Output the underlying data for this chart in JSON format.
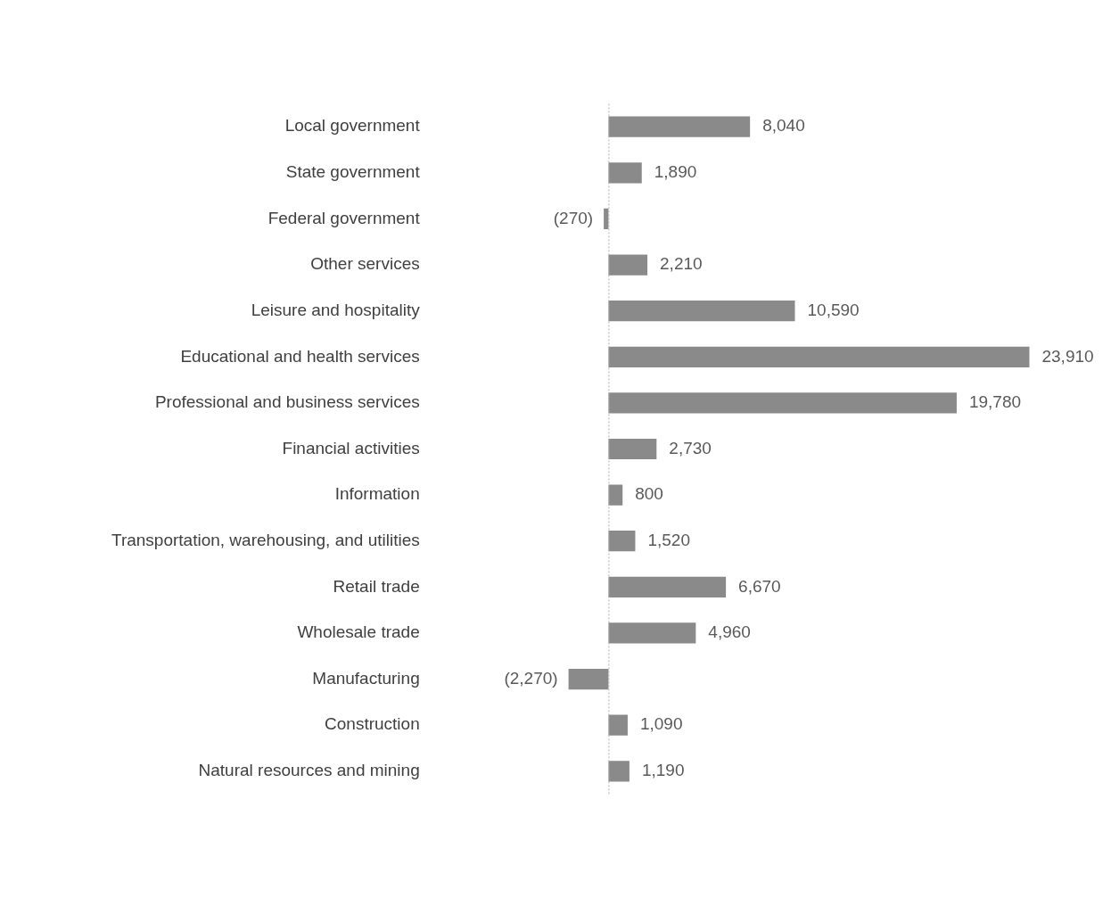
{
  "chart_data": {
    "type": "bar",
    "orientation": "horizontal",
    "categories": [
      "Local government",
      "State government",
      "Federal government",
      "Other services",
      "Leisure and hospitality",
      "Educational and health services",
      "Professional and business services",
      "Financial activities",
      "Information",
      "Transportation, warehousing, and utilities",
      "Retail trade",
      "Wholesale trade",
      "Manufacturing",
      "Construction",
      "Natural resources and mining"
    ],
    "values": [
      8040,
      1890,
      -270,
      2210,
      10590,
      23910,
      19780,
      2730,
      800,
      1520,
      6670,
      4960,
      -2270,
      1090,
      1190
    ],
    "value_labels": [
      "8,040",
      "1,890",
      "(270)",
      "2,210",
      "10,590",
      "23,910",
      "19,780",
      "2,730",
      "800",
      "1,520",
      "6,670",
      "4,960",
      "(2,270)",
      "1,090",
      "1,190"
    ],
    "color": "#8a8a8a",
    "ref_lines": [
      {
        "axis": "x",
        "value": 0,
        "line_style": "dotted",
        "color": "#b0b0b0"
      }
    ]
  }
}
